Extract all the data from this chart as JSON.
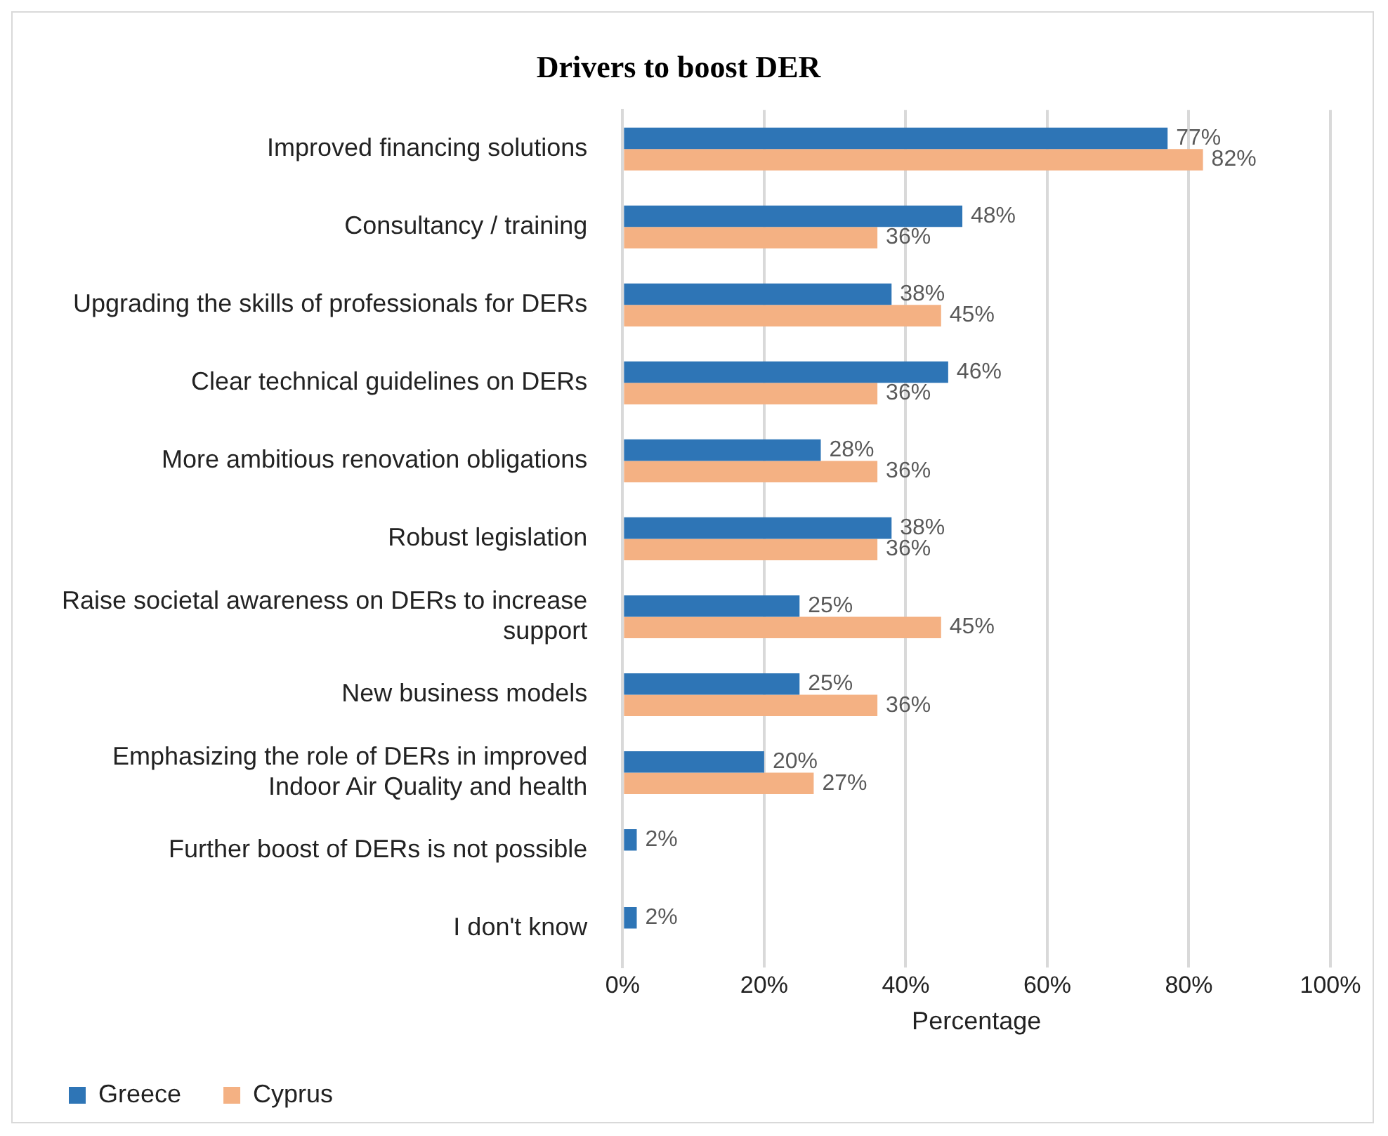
{
  "chart_data": {
    "type": "bar",
    "orientation": "horizontal",
    "title": "Drivers to boost DER",
    "xlabel": "Percentage",
    "categories": [
      "Improved financing solutions",
      "Consultancy / training",
      "Upgrading the skills of professionals for DERs",
      "Clear technical guidelines on DERs",
      "More ambitious renovation obligations",
      "Robust legislation",
      "Raise societal awareness on DERs to increase support",
      "New business models",
      "Emphasizing the role of DERs in improved Indoor Air Quality and health",
      "Further boost of DERs is not possible",
      "I don't know"
    ],
    "series": [
      {
        "name": "Greece",
        "color": "#2e75b6",
        "values": [
          77,
          48,
          38,
          46,
          28,
          38,
          25,
          25,
          20,
          2,
          2
        ],
        "value_labels": [
          "77%",
          "48%",
          "38%",
          "46%",
          "28%",
          "38%",
          "25%",
          "25%",
          "20%",
          "2%",
          "2%"
        ]
      },
      {
        "name": "Cyprus",
        "color": "#f4b183",
        "values": [
          82,
          36,
          45,
          36,
          36,
          36,
          45,
          36,
          27,
          null,
          null
        ],
        "value_labels": [
          "82%",
          "36%",
          "45%",
          "36%",
          "36%",
          "36%",
          "45%",
          "36%",
          "27%",
          null,
          null
        ]
      }
    ],
    "xlim": [
      0,
      100
    ],
    "xticks": [
      {
        "value": 0,
        "label": "0%"
      },
      {
        "value": 20,
        "label": "20%"
      },
      {
        "value": 40,
        "label": "40%"
      },
      {
        "value": 60,
        "label": "60%"
      },
      {
        "value": 80,
        "label": "80%"
      },
      {
        "value": 100,
        "label": "100%"
      }
    ],
    "grid": "x",
    "legend": "bottom left"
  }
}
